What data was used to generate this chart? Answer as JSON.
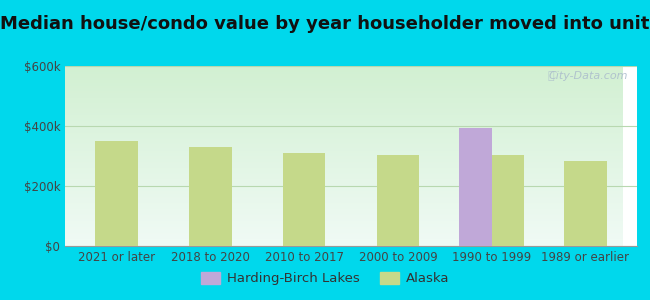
{
  "title": "Median house/condo value by year householder moved into unit",
  "categories": [
    "2021 or later",
    "2018 to 2020",
    "2010 to 2017",
    "2000 to 2009",
    "1990 to 1999",
    "1989 or earlier"
  ],
  "alaska_values": [
    350000,
    330000,
    310000,
    305000,
    305000,
    285000
  ],
  "harding_values": [
    null,
    null,
    null,
    null,
    395000,
    null
  ],
  "alaska_color": "#c5d98a",
  "harding_color": "#c0a8d8",
  "background_outer": "#00d8ec",
  "ylim": [
    0,
    600000
  ],
  "yticks": [
    0,
    200000,
    400000,
    600000
  ],
  "ytick_labels": [
    "$0",
    "$200k",
    "$400k",
    "$600k"
  ],
  "grid_color": "#b8d8b0",
  "legend_harding": "Harding-Birch Lakes",
  "legend_alaska": "Alaska",
  "watermark": "City-Data.com",
  "bar_width": 0.35,
  "title_fontsize": 13,
  "tick_fontsize": 8.5,
  "legend_fontsize": 9.5
}
